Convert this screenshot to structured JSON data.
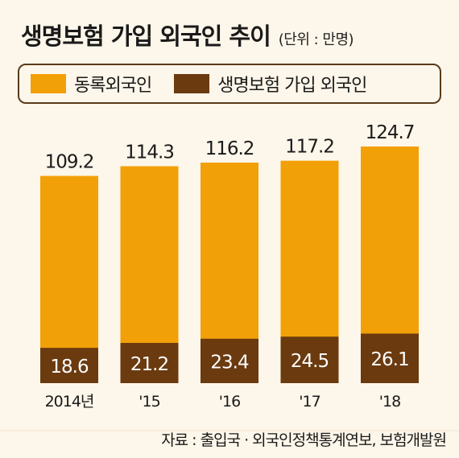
{
  "title": "생명보험 가입 외국인 추이",
  "unit": "(단위 : 만명)",
  "legend": [
    {
      "label": "동록외국인",
      "color": "#f2a007"
    },
    {
      "label": "생명보험 가입 외국인",
      "color": "#6b3a0f"
    }
  ],
  "source": "자료 : 출입국 · 외국인정책통계연보, 보험개발원",
  "chart_data": {
    "type": "bar",
    "stacked": "overlay",
    "categories": [
      "2014년",
      "'15",
      "'16",
      "'17",
      "'18"
    ],
    "series": [
      {
        "name": "동록외국인",
        "values": [
          109.2,
          114.3,
          116.2,
          117.2,
          124.7
        ],
        "labels": [
          "109.2",
          "114.3",
          "116.2",
          "117.2",
          "124.7"
        ],
        "color": "#f2a007"
      },
      {
        "name": "생명보험 가입 외국인",
        "values": [
          18.6,
          21.2,
          23.4,
          24.5,
          26.1
        ],
        "labels": [
          "18.6",
          "21.2",
          "23.4",
          "24.5",
          "26.1"
        ],
        "color": "#6b3a0f"
      }
    ],
    "ylim": [
      0,
      130
    ],
    "grid": false
  }
}
